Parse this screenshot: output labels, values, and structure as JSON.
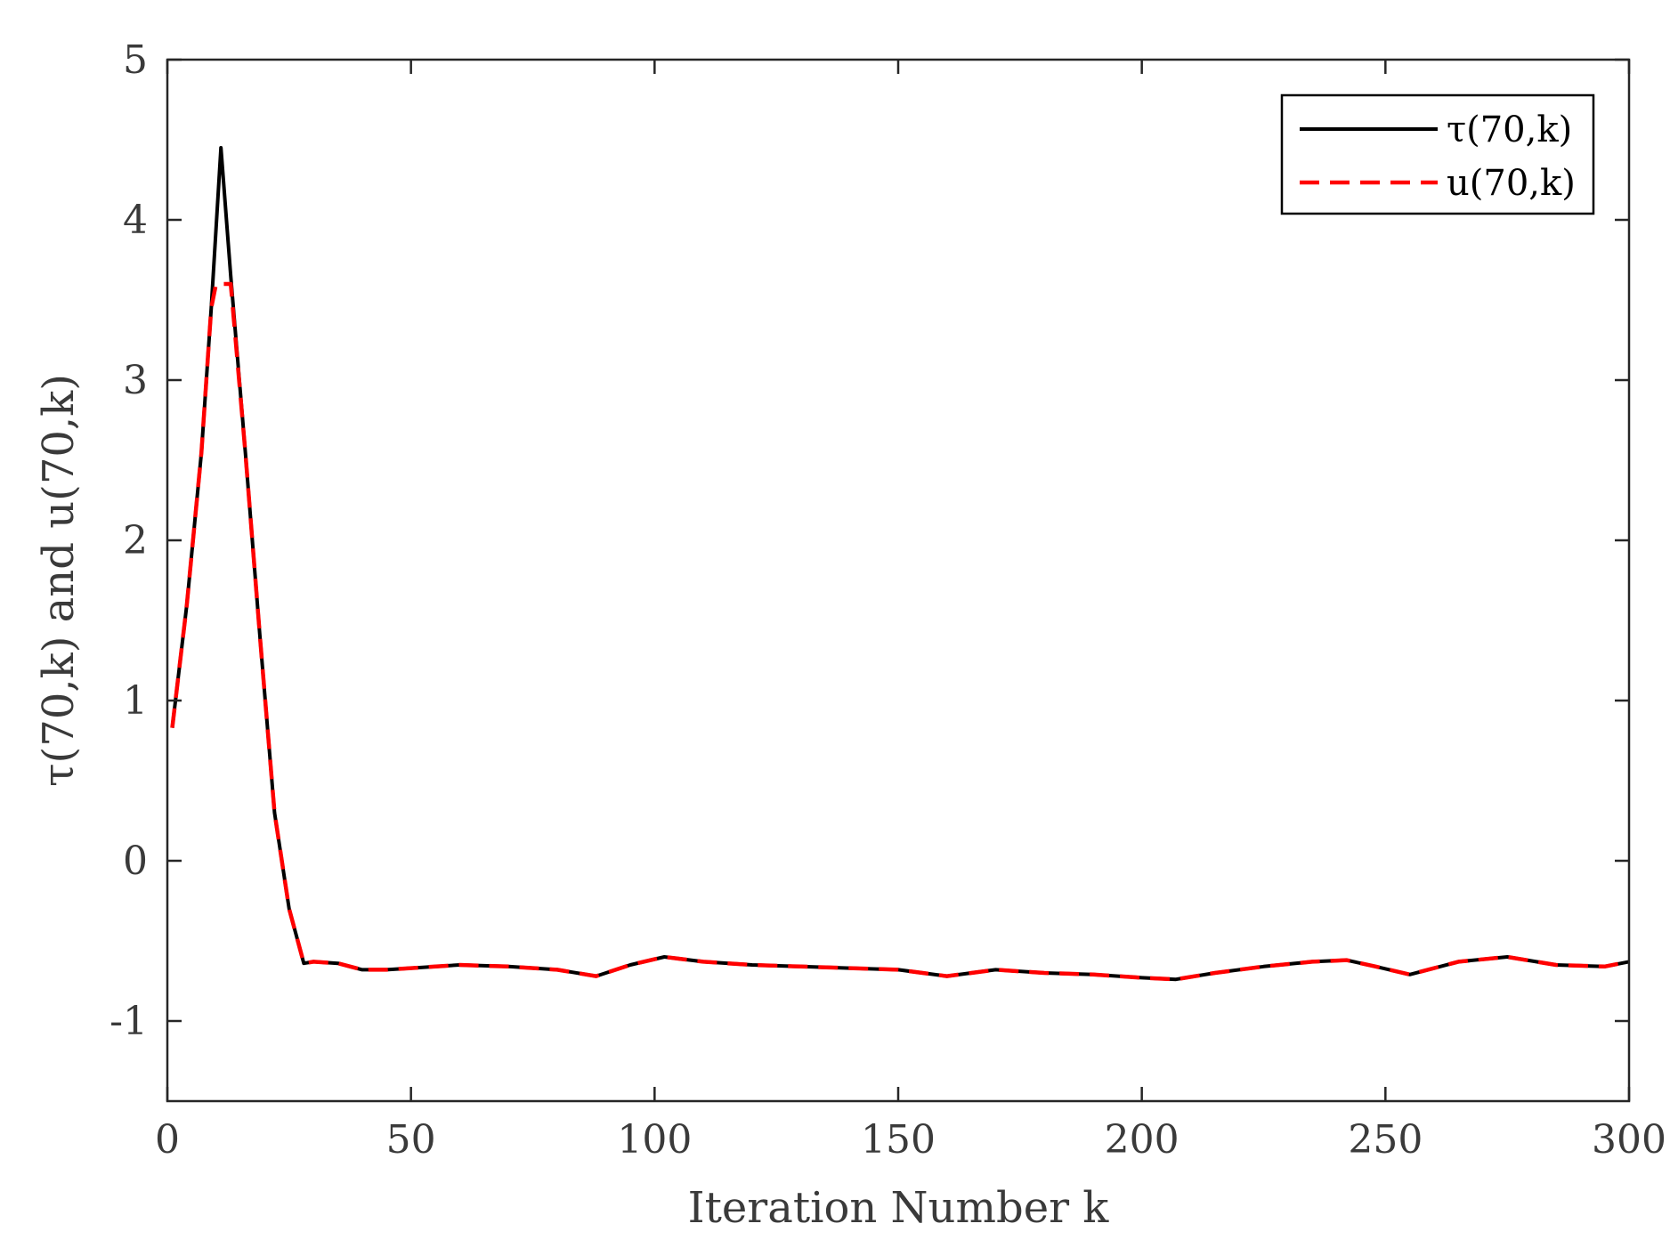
{
  "chart_data": {
    "type": "line",
    "title": "",
    "xlabel": "Iteration Number k",
    "ylabel": "τ(70,k) and u(70,k)",
    "xlim": [
      0,
      300
    ],
    "ylim": [
      -1.5,
      5
    ],
    "xticks": [
      0,
      50,
      100,
      150,
      200,
      250,
      300
    ],
    "xtick_labels": [
      "0",
      "50",
      "100",
      "150",
      "200",
      "250",
      "300"
    ],
    "yticks": [
      -1,
      0,
      1,
      2,
      3,
      4,
      5
    ],
    "ytick_labels": [
      "-1",
      "0",
      "1",
      "2",
      "3",
      "4",
      "5"
    ],
    "grid": false,
    "legend_position": "top-right",
    "series": [
      {
        "name": "τ(70,k)",
        "color": "#000000",
        "style": "solid",
        "x": [
          1,
          4,
          7,
          9,
          11,
          13,
          16,
          19,
          22,
          25,
          28,
          30,
          35,
          40,
          45,
          50,
          60,
          70,
          80,
          88,
          95,
          102,
          110,
          120,
          130,
          140,
          150,
          155,
          160,
          170,
          180,
          190,
          200,
          207,
          215,
          225,
          235,
          242,
          248,
          255,
          265,
          275,
          285,
          295,
          300
        ],
        "y": [
          0.83,
          1.6,
          2.55,
          3.45,
          4.45,
          3.65,
          2.55,
          1.4,
          0.3,
          -0.3,
          -0.64,
          -0.63,
          -0.64,
          -0.68,
          -0.68,
          -0.67,
          -0.65,
          -0.66,
          -0.68,
          -0.72,
          -0.65,
          -0.6,
          -0.63,
          -0.65,
          -0.66,
          -0.67,
          -0.68,
          -0.7,
          -0.72,
          -0.68,
          -0.7,
          -0.71,
          -0.73,
          -0.74,
          -0.7,
          -0.66,
          -0.63,
          -0.62,
          -0.66,
          -0.71,
          -0.63,
          -0.6,
          -0.65,
          -0.66,
          -0.63
        ]
      },
      {
        "name": "u(70,k)",
        "color": "#ff0000",
        "style": "dashed",
        "x": [
          1,
          4,
          7,
          9,
          10,
          11,
          12,
          13,
          16,
          19,
          22,
          25,
          28,
          30,
          35,
          40,
          45,
          50,
          60,
          70,
          80,
          88,
          95,
          102,
          110,
          120,
          130,
          140,
          150,
          155,
          160,
          170,
          180,
          190,
          200,
          207,
          215,
          225,
          235,
          242,
          248,
          255,
          265,
          275,
          285,
          295,
          300
        ],
        "y": [
          0.83,
          1.6,
          2.55,
          3.45,
          3.6,
          3.6,
          3.6,
          3.6,
          2.55,
          1.4,
          0.3,
          -0.3,
          -0.64,
          -0.63,
          -0.64,
          -0.68,
          -0.68,
          -0.67,
          -0.65,
          -0.66,
          -0.68,
          -0.72,
          -0.65,
          -0.6,
          -0.63,
          -0.65,
          -0.66,
          -0.67,
          -0.68,
          -0.7,
          -0.72,
          -0.68,
          -0.7,
          -0.71,
          -0.73,
          -0.74,
          -0.7,
          -0.66,
          -0.63,
          -0.62,
          -0.66,
          -0.71,
          -0.63,
          -0.6,
          -0.65,
          -0.66,
          -0.63
        ]
      }
    ]
  }
}
